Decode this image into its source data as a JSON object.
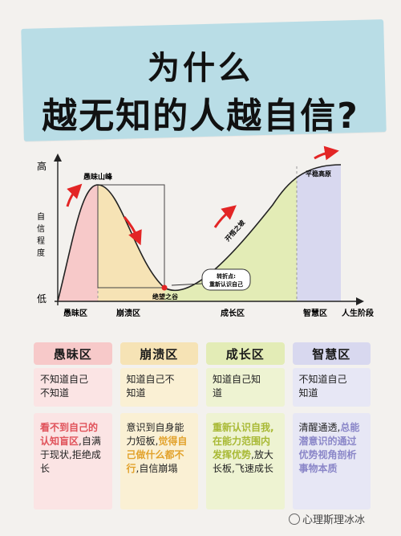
{
  "title": {
    "line1": "为什么",
    "line2": "越无知的人越自信?"
  },
  "colors": {
    "banner": "#b9dde6",
    "ignorance": "#f7c9c9",
    "collapse": "#f6e3b5",
    "growth": "#e3ecb6",
    "wisdom": "#d8d8ef",
    "curve": "#222222",
    "arrow": "#e32525"
  },
  "chart": {
    "y_high": "高",
    "y_low": "低",
    "y_label": "自信程度",
    "x_end_label": "人生阶段",
    "peak_label": "愚昧山峰",
    "valley_label": "绝望之谷",
    "plateau_label": "平稳高原",
    "slope_label": "开悟之坡",
    "turning_point": [
      "转折点:",
      "重新认识自己"
    ],
    "stages": [
      "愚昧区",
      "崩溃区",
      "成长区",
      "智慧区"
    ]
  },
  "stages": [
    {
      "name": "愚昧区",
      "top": [
        "不知道自己",
        "不知道"
      ],
      "bottom_highlight": "看不到自己的认知盲区",
      "bottom_rest": ",自满于现状,拒绝成长"
    },
    {
      "name": "崩溃区",
      "top": [
        "知道自己不",
        "知道"
      ],
      "bottom_plain": "意识到自身能力短板,",
      "bottom_highlight": "觉得自己做什么都不行",
      "bottom_rest": ",自信崩塌"
    },
    {
      "name": "成长区",
      "top": [
        "知道自己知",
        "道"
      ],
      "bottom_highlight": "重新认识自我,在能力范围内发挥优势",
      "bottom_rest": ",放大长板,飞速成长"
    },
    {
      "name": "智慧区",
      "top": [
        "不知道自己",
        "知道"
      ],
      "bottom_plain": "清醒通透,",
      "bottom_highlight": "总能潜意识的通过优势视角剖析事物本质",
      "bottom_rest": ""
    }
  ],
  "watermark": "心理斯理冰冰"
}
